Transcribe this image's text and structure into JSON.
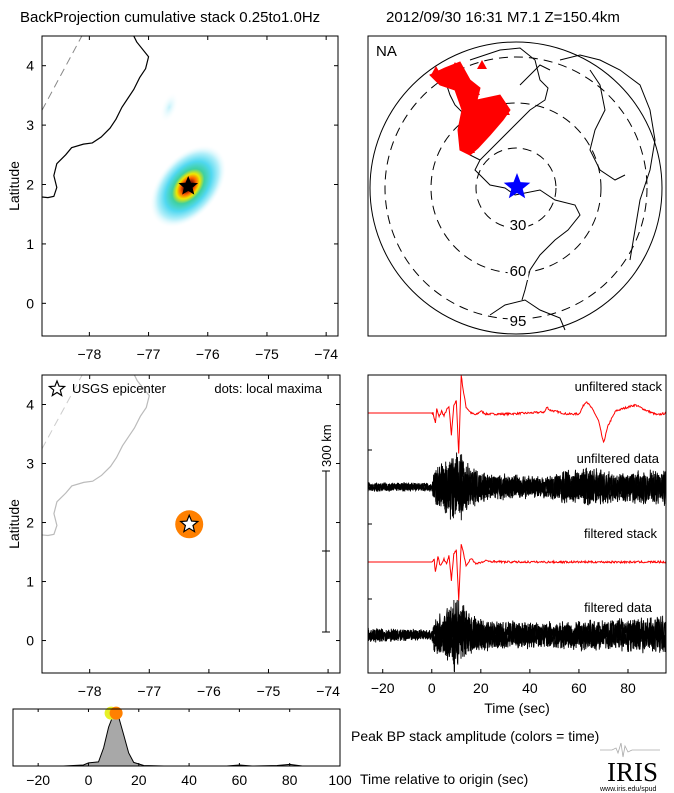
{
  "header": {
    "title": "BackProjection cumulative stack 0.25to1.0Hz",
    "event": "2012/09/30 16:31  M7.1  Z=150.4km"
  },
  "colors": {
    "stack": "#ff0000",
    "epicenter_map": "#0000ff",
    "peak_dot_early": "#e6f026",
    "peak_dot_late": "#ff8000",
    "stations": "#ff0000",
    "coast_gray": "#bbbbbb"
  },
  "chart_data": [
    {
      "id": "cumulative_stack_map",
      "type": "heatmap",
      "xlabel": "",
      "ylabel": "Latitude",
      "xlim": [
        -78.8,
        -73.8
      ],
      "ylim": [
        -0.55,
        4.5
      ],
      "xticks": [
        "-78",
        "-77",
        "-76",
        "-75",
        "-74"
      ],
      "yticks": [
        "0",
        "1",
        "2",
        "3",
        "4"
      ],
      "epicenter": {
        "lon": -76.33,
        "lat": 1.97
      },
      "maxima": [
        {
          "lon": -76.33,
          "lat": 1.97,
          "strength": 1.0
        },
        {
          "lon": -76.65,
          "lat": 3.3,
          "strength": 0.15
        }
      ]
    },
    {
      "id": "station_map",
      "type": "scatter",
      "label": "NA",
      "distance_rings_deg": [
        "30",
        "60",
        "95"
      ],
      "epicenter_icon": "blue-star"
    },
    {
      "id": "local_maxima_map",
      "type": "scatter",
      "xlabel": "",
      "ylabel": "Latitude",
      "xlim": [
        -78.8,
        -73.8
      ],
      "ylim": [
        -0.55,
        4.5
      ],
      "xticks": [
        "-78",
        "-77",
        "-76",
        "-75",
        "-74"
      ],
      "yticks": [
        "0",
        "1",
        "2",
        "3",
        "4"
      ],
      "legend_epicenter": "USGS epicenter",
      "legend_dots": "dots: local maxima",
      "scale_bar": "300 km",
      "dots": [
        {
          "lon": -76.33,
          "lat": 1.97,
          "time": 11
        }
      ]
    },
    {
      "id": "traces",
      "type": "line",
      "xlabel": "Time (sec)",
      "xlim": [
        -26,
        95.5
      ],
      "xticks": [
        "-20",
        "0",
        "20",
        "40",
        "60",
        "80"
      ],
      "series": [
        {
          "name": "unfiltered stack",
          "kind": "stack",
          "points": [
            [
              -26,
              0
            ],
            [
              0.5,
              0
            ],
            [
              1.5,
              -10
            ],
            [
              2,
              4
            ],
            [
              3,
              -4
            ],
            [
              4,
              2
            ],
            [
              5,
              -3
            ],
            [
              6,
              3
            ],
            [
              7,
              6
            ],
            [
              8,
              -22
            ],
            [
              9,
              8
            ],
            [
              10,
              12
            ],
            [
              11,
              -40
            ],
            [
              12,
              38
            ],
            [
              13,
              20
            ],
            [
              14,
              6
            ],
            [
              16,
              0
            ],
            [
              18,
              -2
            ],
            [
              20,
              2
            ],
            [
              22,
              -1
            ],
            [
              30,
              -1
            ],
            [
              40,
              0
            ],
            [
              46,
              1
            ],
            [
              47,
              6
            ],
            [
              48,
              3
            ],
            [
              55,
              -1
            ],
            [
              60,
              -1
            ],
            [
              62,
              8
            ],
            [
              63,
              12
            ],
            [
              66,
              2
            ],
            [
              68,
              -8
            ],
            [
              70,
              -30
            ],
            [
              72,
              -12
            ],
            [
              75,
              2
            ],
            [
              80,
              6
            ],
            [
              83,
              8
            ],
            [
              88,
              2
            ],
            [
              92,
              -2
            ],
            [
              95.5,
              0
            ]
          ]
        },
        {
          "name": "unfiltered data",
          "kind": "data",
          "envelope": [
            [
              -26,
              5
            ],
            [
              0,
              5
            ],
            [
              1,
              20
            ],
            [
              6,
              30
            ],
            [
              9,
              40
            ],
            [
              12,
              38
            ],
            [
              16,
              22
            ],
            [
              25,
              14
            ],
            [
              45,
              12
            ],
            [
              55,
              18
            ],
            [
              68,
              22
            ],
            [
              75,
              16
            ],
            [
              95.5,
              20
            ]
          ]
        },
        {
          "name": "filtered stack",
          "kind": "stack",
          "points": [
            [
              -26,
              0
            ],
            [
              0,
              0
            ],
            [
              1,
              2
            ],
            [
              1.5,
              -10
            ],
            [
              2.5,
              6
            ],
            [
              3.5,
              -4
            ],
            [
              5,
              3
            ],
            [
              6,
              -2
            ],
            [
              7,
              6
            ],
            [
              8,
              -18
            ],
            [
              9,
              8
            ],
            [
              10,
              12
            ],
            [
              11,
              -38
            ],
            [
              12,
              18
            ],
            [
              13,
              8
            ],
            [
              14,
              -4
            ],
            [
              16,
              4
            ],
            [
              18,
              -2
            ],
            [
              22,
              1
            ],
            [
              30,
              0
            ],
            [
              95.5,
              0
            ]
          ]
        },
        {
          "name": "filtered data",
          "kind": "data",
          "envelope": [
            [
              -26,
              8
            ],
            [
              -5,
              6
            ],
            [
              0,
              5
            ],
            [
              1,
              18
            ],
            [
              6,
              30
            ],
            [
              9,
              40
            ],
            [
              12,
              38
            ],
            [
              16,
              22
            ],
            [
              25,
              15
            ],
            [
              50,
              15
            ],
            [
              60,
              17
            ],
            [
              95.5,
              20
            ]
          ]
        }
      ]
    },
    {
      "id": "peak_amplitude",
      "type": "area",
      "title": "Peak BP stack amplitude (colors = time)",
      "xlabel": "Time relative to origin (sec)",
      "xlim": [
        -30,
        100
      ],
      "ylim": [
        0,
        1.1
      ],
      "xticks": [
        "-20",
        "0",
        "20",
        "40",
        "60",
        "80",
        "100"
      ],
      "x": [
        -30,
        -10,
        -2,
        0,
        2,
        4,
        6,
        8,
        10,
        12,
        14,
        16,
        18,
        22,
        30,
        55,
        60,
        65,
        75,
        80,
        85,
        100
      ],
      "values": [
        0,
        0,
        0.02,
        0.06,
        0.07,
        0.08,
        0.35,
        0.75,
        1.0,
        0.95,
        0.6,
        0.25,
        0.07,
        0.01,
        0,
        0,
        0.02,
        0,
        0.01,
        0.03,
        0,
        0
      ],
      "peaks": [
        {
          "time": 9,
          "value": 1.02
        },
        {
          "time": 11,
          "value": 1.02
        }
      ]
    }
  ],
  "logo": {
    "name": "IRIS",
    "url_text": "www.iris.edu/spud"
  }
}
